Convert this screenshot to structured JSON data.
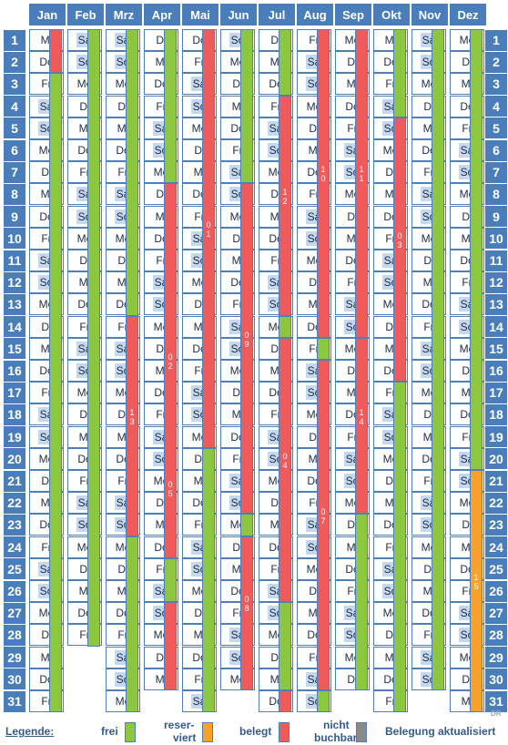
{
  "months": [
    {
      "name": "Jan",
      "start": 2,
      "len": 31,
      "segs": [
        {
          "s": 1,
          "e": 2,
          "st": "belegt"
        },
        {
          "s": 3,
          "e": 31,
          "st": "frei"
        }
      ]
    },
    {
      "name": "Feb",
      "start": 5,
      "len": 28,
      "segs": [
        {
          "s": 1,
          "e": 28,
          "st": "frei"
        }
      ]
    },
    {
      "name": "Mrz",
      "start": 5,
      "len": 31,
      "segs": [
        {
          "s": 1,
          "e": 13,
          "st": "frei"
        },
        {
          "s": 14,
          "e": 23,
          "st": "belegt",
          "label": "13"
        },
        {
          "s": 24,
          "e": 31,
          "st": "frei"
        }
      ]
    },
    {
      "name": "Apr",
      "start": 1,
      "len": 30,
      "segs": [
        {
          "s": 1,
          "e": 7,
          "st": "frei"
        },
        {
          "s": 8,
          "e": 24,
          "st": "belegt",
          "label": "02············05"
        },
        {
          "s": 25,
          "e": 26,
          "st": "frei"
        },
        {
          "s": 27,
          "e": 30,
          "st": "belegt"
        }
      ]
    },
    {
      "name": "Mai",
      "start": 3,
      "len": 31,
      "segs": [
        {
          "s": 1,
          "e": 19,
          "st": "belegt",
          "label": "01"
        },
        {
          "s": 20,
          "e": 31,
          "st": "frei"
        }
      ]
    },
    {
      "name": "Jun",
      "start": 6,
      "len": 30,
      "segs": [
        {
          "s": 1,
          "e": 7,
          "st": "frei"
        },
        {
          "s": 8,
          "e": 22,
          "st": "belegt",
          "label": "09"
        },
        {
          "s": 23,
          "e": 23,
          "st": "frei"
        },
        {
          "s": 24,
          "e": 30,
          "st": "belegt",
          "label": "08"
        }
      ]
    },
    {
      "name": "Jul",
      "start": 1,
      "len": 31,
      "segs": [
        {
          "s": 1,
          "e": 3,
          "st": "frei"
        },
        {
          "s": 4,
          "e": 13,
          "st": "belegt",
          "label": "12"
        },
        {
          "s": 14,
          "e": 14,
          "st": "frei"
        },
        {
          "s": 15,
          "e": 26,
          "st": "belegt",
          "label": "04"
        },
        {
          "s": 27,
          "e": 30,
          "st": "frei"
        },
        {
          "s": 31,
          "e": 31,
          "st": "belegt"
        }
      ]
    },
    {
      "name": "Aug",
      "start": 4,
      "len": 31,
      "segs": [
        {
          "s": 1,
          "e": 14,
          "st": "belegt",
          "label": "10"
        },
        {
          "s": 15,
          "e": 15,
          "st": "frei"
        },
        {
          "s": 16,
          "e": 30,
          "st": "belegt",
          "label": "07"
        },
        {
          "s": 31,
          "e": 31,
          "st": "frei"
        }
      ]
    },
    {
      "name": "Sep",
      "start": 0,
      "len": 30,
      "segs": [
        {
          "s": 1,
          "e": 14,
          "st": "belegt",
          "label": "11"
        },
        {
          "s": 15,
          "e": 22,
          "st": "belegt",
          "label": "14"
        },
        {
          "s": 23,
          "e": 30,
          "st": "frei"
        }
      ]
    },
    {
      "name": "Okt",
      "start": 2,
      "len": 31,
      "segs": [
        {
          "s": 1,
          "e": 4,
          "st": "frei"
        },
        {
          "s": 5,
          "e": 16,
          "st": "belegt",
          "label": "03"
        },
        {
          "s": 17,
          "e": 31,
          "st": "frei"
        }
      ]
    },
    {
      "name": "Nov",
      "start": 5,
      "len": 30,
      "segs": [
        {
          "s": 1,
          "e": 30,
          "st": "frei"
        }
      ]
    },
    {
      "name": "Dez",
      "start": 0,
      "len": 31,
      "segs": [
        {
          "s": 1,
          "e": 20,
          "st": "frei"
        },
        {
          "s": 21,
          "e": 31,
          "st": "reserviert",
          "label": "15"
        }
      ]
    }
  ],
  "weekdays": [
    "Mo",
    "Di",
    "Mi",
    "Do",
    "Fr",
    "Sa",
    "So"
  ],
  "colors": {
    "frei": "#8dc63f",
    "reserviert": "#f7a32b",
    "belegt": "#f05a5b",
    "nicht": "#8a8a8a",
    "header": "#4a7ebb"
  },
  "watermark": "DR",
  "legend": {
    "title": "Legende:",
    "frei": "frei",
    "reserviert_l1": "reser-",
    "reserviert_l2": "viert",
    "belegt": "belegt",
    "nicht_l1": "nicht",
    "nicht_l2": "buchbar",
    "aktualisiert": "Belegung aktualisiert"
  }
}
